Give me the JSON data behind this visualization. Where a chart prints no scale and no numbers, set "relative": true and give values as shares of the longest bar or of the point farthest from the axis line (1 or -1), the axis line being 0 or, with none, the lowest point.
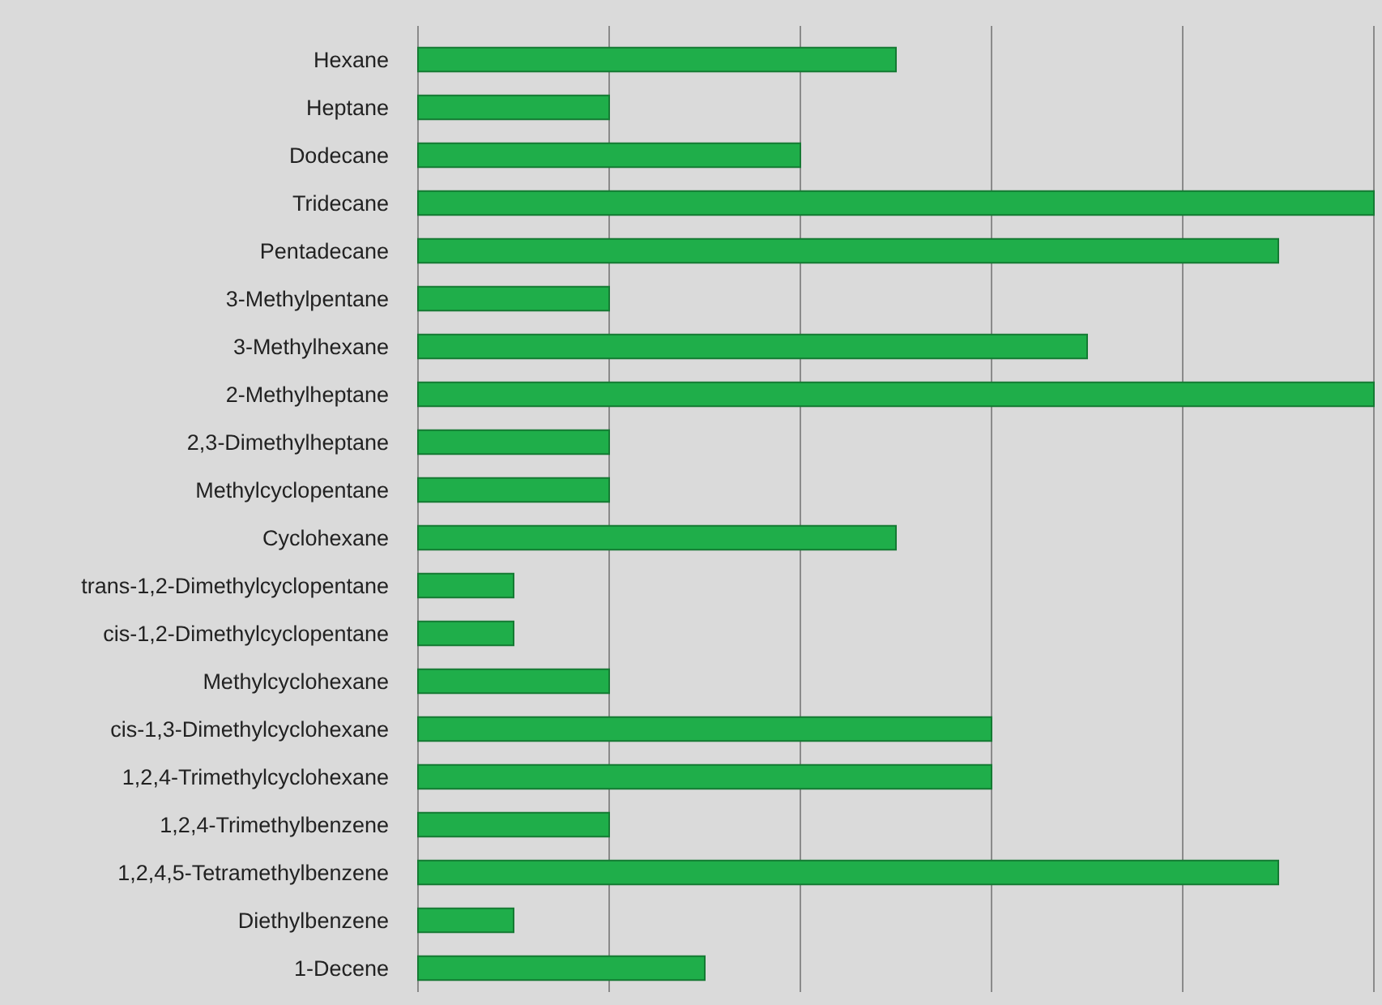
{
  "chart_data": {
    "type": "bar",
    "orientation": "horizontal",
    "relative": true,
    "grid": "x",
    "color": "#1fae4a",
    "categories": [
      "Hexane",
      "Heptane",
      "Dodecane",
      "Tridecane",
      "Pentadecane",
      "3-Methylpentane",
      "3-Methylhexane",
      "2-Methylheptane",
      "2,3-Dimethylheptane",
      "Methylcyclopentane",
      "Cyclohexane",
      "trans-1,2-Dimethylcyclopentane",
      "cis-1,2-Dimethylcyclopentane",
      "Methylcyclohexane",
      "cis-1,3-Dimethylcyclohexane",
      "1,2,4-Trimethylcyclohexane",
      "1,2,4-Trimethylbenzene",
      "1,2,4,5-Tetramethylbenzene",
      "Diethylbenzene",
      "1-Decene"
    ],
    "values": [
      0.5,
      0.2,
      0.4,
      1,
      0.9,
      0.2,
      0.7,
      1,
      0.2,
      0.2,
      0.5,
      0.1,
      0.1,
      0.2,
      0.6,
      0.6,
      0.2,
      0.9,
      0.1,
      0.3
    ]
  }
}
